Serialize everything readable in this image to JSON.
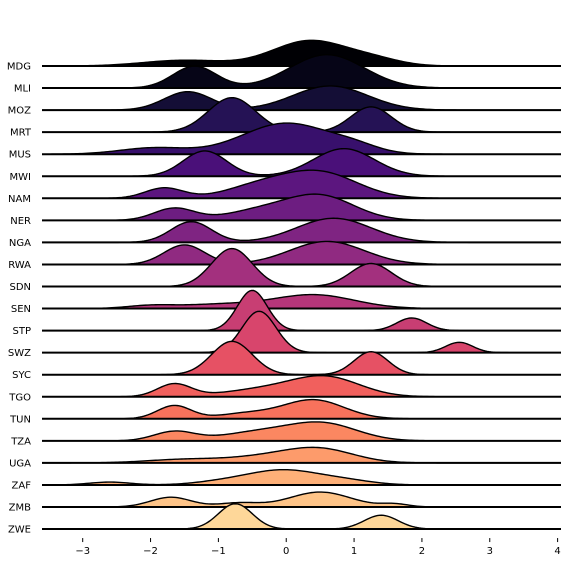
{
  "chart_data": {
    "type": "area",
    "subtype": "ridgeline",
    "title": "",
    "xlabel": "",
    "ylabel": "",
    "xlim": [
      -3.6,
      4.05
    ],
    "x_ticks": [
      -3,
      -2,
      -1,
      0,
      1,
      2,
      3,
      4
    ],
    "x_tick_labels": [
      "−3",
      "−2",
      "−1",
      "0",
      "1",
      "2",
      "3",
      "4"
    ],
    "grid": false,
    "legend": "none",
    "colormap": "magma",
    "baseline_color": "#000000",
    "categories": [
      "MDG",
      "MLI",
      "MOZ",
      "MRT",
      "MUS",
      "MWI",
      "NAM",
      "NER",
      "NGA",
      "RWA",
      "SDN",
      "SEN",
      "STP",
      "SWZ",
      "SYC",
      "TGO",
      "TUN",
      "TZA",
      "UGA",
      "ZAF",
      "ZMB",
      "ZWE"
    ],
    "series": [
      {
        "category": "MDG",
        "color": "#000004",
        "components": [
          [
            0.35,
            0.55,
            2.2
          ],
          [
            -1.5,
            0.6,
            0.5
          ],
          [
            1.3,
            0.4,
            0.5
          ]
        ]
      },
      {
        "category": "MLI",
        "color": "#060517",
        "components": [
          [
            -1.35,
            0.32,
            1.9
          ],
          [
            0.6,
            0.55,
            2.9
          ]
        ]
      },
      {
        "category": "MOZ",
        "color": "#140e36",
        "components": [
          [
            -1.45,
            0.35,
            1.6
          ],
          [
            0.65,
            0.55,
            2.1
          ]
        ]
      },
      {
        "category": "MRT",
        "color": "#251255",
        "components": [
          [
            -0.8,
            0.35,
            3.0
          ],
          [
            1.25,
            0.3,
            2.2
          ]
        ]
      },
      {
        "category": "MUS",
        "color": "#38106c",
        "components": [
          [
            -1.95,
            0.5,
            0.55
          ],
          [
            0.0,
            0.65,
            2.7
          ],
          [
            1.0,
            0.35,
            0.5
          ]
        ]
      },
      {
        "category": "MWI",
        "color": "#4a1079",
        "components": [
          [
            -1.2,
            0.32,
            2.2
          ],
          [
            0.85,
            0.45,
            2.4
          ]
        ]
      },
      {
        "category": "NAM",
        "color": "#5c167f",
        "components": [
          [
            -1.8,
            0.28,
            0.9
          ],
          [
            -0.4,
            0.5,
            1.0
          ],
          [
            0.5,
            0.55,
            2.2
          ]
        ]
      },
      {
        "category": "NER",
        "color": "#6d1d81",
        "components": [
          [
            -1.65,
            0.3,
            1.05
          ],
          [
            -0.4,
            0.5,
            0.8
          ],
          [
            0.5,
            0.5,
            2.1
          ]
        ]
      },
      {
        "category": "NGA",
        "color": "#7f2482",
        "components": [
          [
            -1.4,
            0.3,
            1.8
          ],
          [
            0.7,
            0.55,
            2.1
          ]
        ]
      },
      {
        "category": "RWA",
        "color": "#902a81",
        "components": [
          [
            -1.5,
            0.3,
            1.7
          ],
          [
            0.6,
            0.55,
            2.0
          ]
        ]
      },
      {
        "category": "SDN",
        "color": "#a3307e",
        "components": [
          [
            -0.8,
            0.3,
            3.3
          ],
          [
            1.25,
            0.3,
            2.0
          ]
        ]
      },
      {
        "category": "SEN",
        "color": "#b5367a",
        "components": [
          [
            -2.0,
            0.35,
            0.25
          ],
          [
            -1.0,
            0.55,
            0.35
          ],
          [
            0.4,
            0.6,
            1.2
          ]
        ]
      },
      {
        "category": "STP",
        "color": "#c83e73",
        "components": [
          [
            -0.5,
            0.22,
            3.5
          ],
          [
            1.85,
            0.22,
            1.1
          ]
        ]
      },
      {
        "category": "SWZ",
        "color": "#d8456c",
        "components": [
          [
            -0.4,
            0.25,
            3.6
          ],
          [
            2.55,
            0.2,
            0.9
          ]
        ]
      },
      {
        "category": "SYC",
        "color": "#e65164",
        "components": [
          [
            -0.8,
            0.3,
            2.9
          ],
          [
            1.25,
            0.25,
            2.0
          ]
        ]
      },
      {
        "category": "TGO",
        "color": "#f1605d",
        "components": [
          [
            -1.65,
            0.25,
            1.1
          ],
          [
            -0.3,
            0.6,
            0.65
          ],
          [
            0.6,
            0.5,
            1.6
          ]
        ]
      },
      {
        "category": "TUN",
        "color": "#f7725c",
        "components": [
          [
            -1.65,
            0.25,
            1.15
          ],
          [
            -0.6,
            0.4,
            0.45
          ],
          [
            0.4,
            0.45,
            1.65
          ]
        ]
      },
      {
        "category": "TZA",
        "color": "#fb8761",
        "components": [
          [
            -1.65,
            0.3,
            0.8
          ],
          [
            -0.4,
            0.55,
            0.75
          ],
          [
            0.55,
            0.5,
            1.45
          ]
        ]
      },
      {
        "category": "UGA",
        "color": "#fd9b6b",
        "components": [
          [
            -1.5,
            0.55,
            0.3
          ],
          [
            -0.3,
            0.55,
            0.5
          ],
          [
            0.5,
            0.5,
            1.15
          ]
        ]
      },
      {
        "category": "ZAF",
        "color": "#feb078",
        "components": [
          [
            -2.6,
            0.3,
            0.25
          ],
          [
            -1.0,
            0.4,
            0.2
          ],
          [
            -0.05,
            0.55,
            1.3
          ],
          [
            0.9,
            0.4,
            0.3
          ]
        ]
      },
      {
        "category": "ZMB",
        "color": "#fec488",
        "components": [
          [
            -1.7,
            0.3,
            0.85
          ],
          [
            -0.7,
            0.3,
            0.35
          ],
          [
            0.5,
            0.45,
            1.3
          ],
          [
            1.6,
            0.2,
            0.25
          ]
        ]
      },
      {
        "category": "ZWE",
        "color": "#fed799",
        "components": [
          [
            -0.75,
            0.25,
            2.2
          ],
          [
            1.4,
            0.25,
            1.2
          ]
        ]
      }
    ]
  }
}
